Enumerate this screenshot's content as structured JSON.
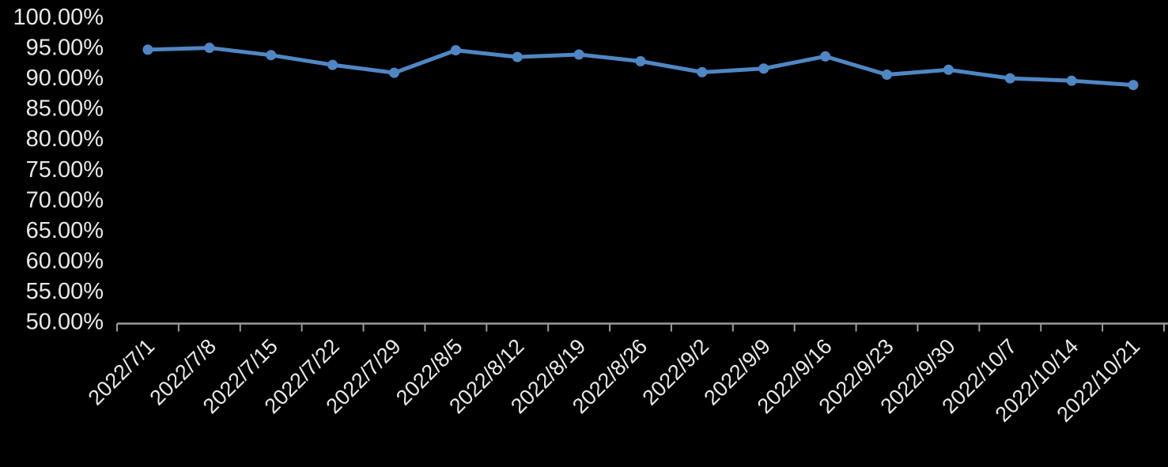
{
  "chart_data": {
    "type": "line",
    "title": "",
    "xlabel": "",
    "ylabel": "",
    "categories": [
      "2022/7/1",
      "2022/7/8",
      "2022/7/15",
      "2022/7/22",
      "2022/7/29",
      "2022/8/5",
      "2022/8/12",
      "2022/8/19",
      "2022/8/26",
      "2022/9/2",
      "2022/9/9",
      "2022/9/16",
      "2022/9/23",
      "2022/9/30",
      "2022/10/7",
      "2022/10/14",
      "2022/10/21"
    ],
    "series": [
      {
        "name": "percentage-series",
        "values": [
          94.7,
          95.0,
          93.8,
          92.2,
          90.9,
          94.6,
          93.5,
          93.9,
          92.8,
          91.0,
          91.6,
          93.6,
          90.6,
          91.4,
          90.0,
          89.6,
          88.9
        ]
      }
    ],
    "ytick_labels": [
      "100.00%",
      "95.00%",
      "90.00%",
      "85.00%",
      "80.00%",
      "75.00%",
      "70.00%",
      "65.00%",
      "60.00%",
      "55.00%",
      "50.00%"
    ],
    "ytick_values": [
      100,
      95,
      90,
      85,
      80,
      75,
      70,
      65,
      60,
      55,
      50
    ],
    "ylim": [
      50,
      100
    ],
    "grid": false,
    "legend": "none",
    "colors": {
      "background": "#000000",
      "line": "#4f87c5",
      "marker": "#4f87c5",
      "axis": "#9b9b9b",
      "text": "#e9e9e9"
    }
  }
}
